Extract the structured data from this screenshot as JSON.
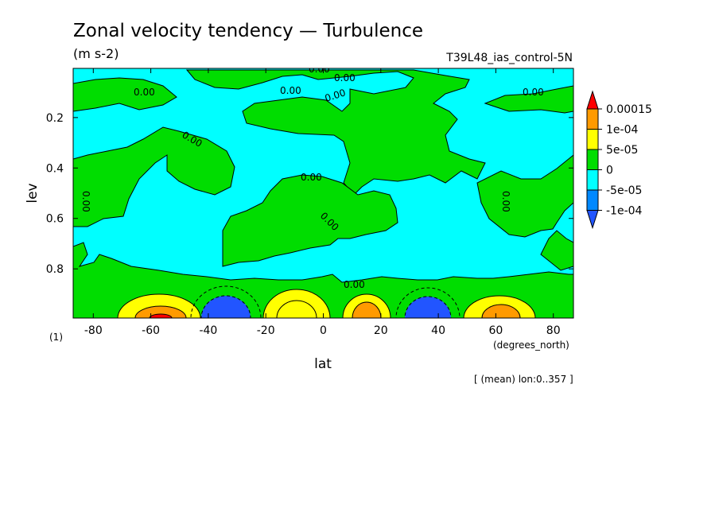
{
  "chart_data": {
    "type": "heatmap",
    "title": "Zonal velocity tendency — Turbulence",
    "units": "(m s-2)",
    "experiment": "T39L48_ias_control-5N",
    "xlabel": "lat",
    "x_units": "(degrees_north)",
    "ylabel": "lev",
    "y_units": "(1)",
    "footnote": "[ (mean) lon:0..357 ]",
    "xlim": [
      -87,
      87
    ],
    "ylim": [
      0.995,
      0.005
    ],
    "xticks": [
      "-80",
      "-60",
      "-40",
      "-20",
      "0",
      "20",
      "40",
      "60",
      "80"
    ],
    "xtick_values": [
      -80,
      -60,
      -40,
      -20,
      0,
      20,
      40,
      60,
      80
    ],
    "yticks": [
      "0.2",
      "0.4",
      "0.6",
      "0.8"
    ],
    "ytick_values": [
      0.2,
      0.4,
      0.6,
      0.8
    ],
    "colorbar": {
      "labels": [
        "0.00015",
        "1e-04",
        "5e-05",
        "0",
        "-5e-05",
        "-1e-04"
      ],
      "levels": [
        0.00015,
        0.0001,
        5e-05,
        0,
        -5e-05,
        -0.0001
      ],
      "colors": [
        "#ff0000",
        "#ff9a00",
        "#ffff00",
        "#00dd00",
        "#00ffff",
        "#0088ff",
        "#2255ff"
      ]
    },
    "background_color": "#00ffff",
    "positive_small_color": "#00dd00",
    "contour_label": "0.00",
    "surface_features": [
      {
        "lat_center": -58,
        "sign": "positive",
        "peak": 0.00015
      },
      {
        "lat_center": -35,
        "sign": "negative",
        "peak": -0.0001
      },
      {
        "lat_center": -5,
        "sign": "positive",
        "peak": 0.0001
      },
      {
        "lat_center": 13,
        "sign": "positive",
        "peak": 0.00015
      },
      {
        "lat_center": 38,
        "sign": "negative",
        "peak": -0.0001
      },
      {
        "lat_center": 60,
        "sign": "positive",
        "peak": 0.00015
      }
    ]
  }
}
